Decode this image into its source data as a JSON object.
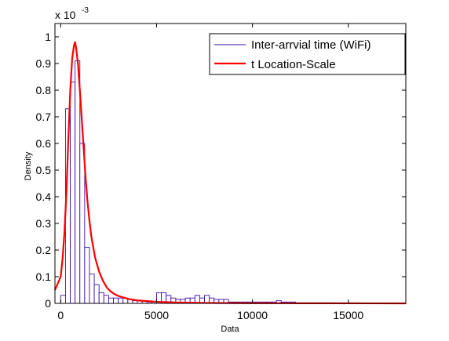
{
  "chart_data": {
    "type": "bar",
    "xlabel": "Data",
    "ylabel": "Density",
    "xlim": [
      -300,
      18000
    ],
    "ylim": [
      0,
      0.00105
    ],
    "y_exponent_label": "x 10",
    "y_exponent_power": "-3",
    "x_ticks": [
      0,
      5000,
      10000,
      15000
    ],
    "x_tick_labels": [
      "0",
      "5000",
      "10000",
      "15000"
    ],
    "y_ticks": [
      0,
      0.0001,
      0.0002,
      0.0003,
      0.0004,
      0.0005,
      0.0006,
      0.0007,
      0.0008,
      0.0009,
      0.001
    ],
    "y_tick_labels": [
      "0",
      "0.1",
      "0.2",
      "0.3",
      "0.4",
      "0.5",
      "0.6",
      "0.7",
      "0.8",
      "0.9",
      "1"
    ],
    "legend": {
      "placement": "top-right",
      "entries": [
        {
          "label": "Inter-arrvial time (WiFi)",
          "color": "#3f0f9f"
        },
        {
          "label": "t Location-Scale",
          "color": "#ff0000"
        }
      ]
    },
    "series": [
      {
        "name": "Inter-arrvial time (WiFi)",
        "kind": "histogram",
        "color": "#3f0f9f",
        "bin_width": 250,
        "bin_starts": [
          0,
          250,
          500,
          750,
          1000,
          1250,
          1500,
          1750,
          2000,
          2250,
          2500,
          2750,
          3000,
          3250,
          3500,
          3750,
          4000,
          4250,
          4500,
          4750,
          5000,
          5250,
          5500,
          5750,
          6000,
          6250,
          6500,
          6750,
          7000,
          7250,
          7500,
          7750,
          8000,
          8250,
          8500,
          8750,
          9000,
          9250,
          9500,
          9750,
          10000,
          10250,
          10500,
          10750,
          11000,
          11250,
          11500,
          11750,
          12000
        ],
        "values": [
          3e-05,
          0.00073,
          0.00083,
          0.00091,
          0.0006,
          0.00021,
          0.00011,
          7e-05,
          4e-05,
          3e-05,
          2e-05,
          2e-05,
          2e-05,
          2e-05,
          1.5e-05,
          1e-05,
          1e-05,
          1e-05,
          5e-06,
          5e-06,
          4e-05,
          4e-05,
          3e-05,
          2e-05,
          1.5e-05,
          1.5e-05,
          2e-05,
          2e-05,
          3e-05,
          2e-05,
          3e-05,
          2e-05,
          1.5e-05,
          1.5e-05,
          1.5e-05,
          5e-06,
          5e-06,
          5e-06,
          5e-06,
          5e-06,
          5e-06,
          5e-06,
          5e-06,
          5e-06,
          5e-06,
          1e-05,
          5e-06,
          5e-06,
          5e-06
        ]
      },
      {
        "name": "t Location-Scale",
        "kind": "line",
        "color": "#ff0000",
        "x": [
          -300,
          0,
          100,
          200,
          300,
          400,
          500,
          600,
          700,
          750,
          800,
          900,
          1000,
          1100,
          1200,
          1300,
          1400,
          1500,
          1600,
          1700,
          1800,
          2000,
          2200,
          2400,
          2600,
          2800,
          3000,
          3500,
          4000,
          4500,
          5000,
          6000,
          7000,
          8000,
          9000,
          10000,
          12000,
          14000,
          16000,
          18000
        ],
        "y": [
          5e-05,
          0.0001,
          0.00017,
          0.00027,
          0.00042,
          0.00062,
          0.0008,
          0.00092,
          0.00097,
          0.00098,
          0.00096,
          0.0009,
          0.0008,
          0.00069,
          0.00058,
          0.00047,
          0.00038,
          0.00031,
          0.00025,
          0.00021,
          0.00017,
          0.00012,
          8.5e-05,
          6e-05,
          4.5e-05,
          3.5e-05,
          2.8e-05,
          1.7e-05,
          1.1e-05,
          8.5e-06,
          6e-06,
          3.5e-06,
          2.2e-06,
          1.5e-06,
          1.1e-06,
          8e-07,
          5e-07,
          3e-07,
          2e-07,
          1e-07
        ]
      }
    ]
  }
}
